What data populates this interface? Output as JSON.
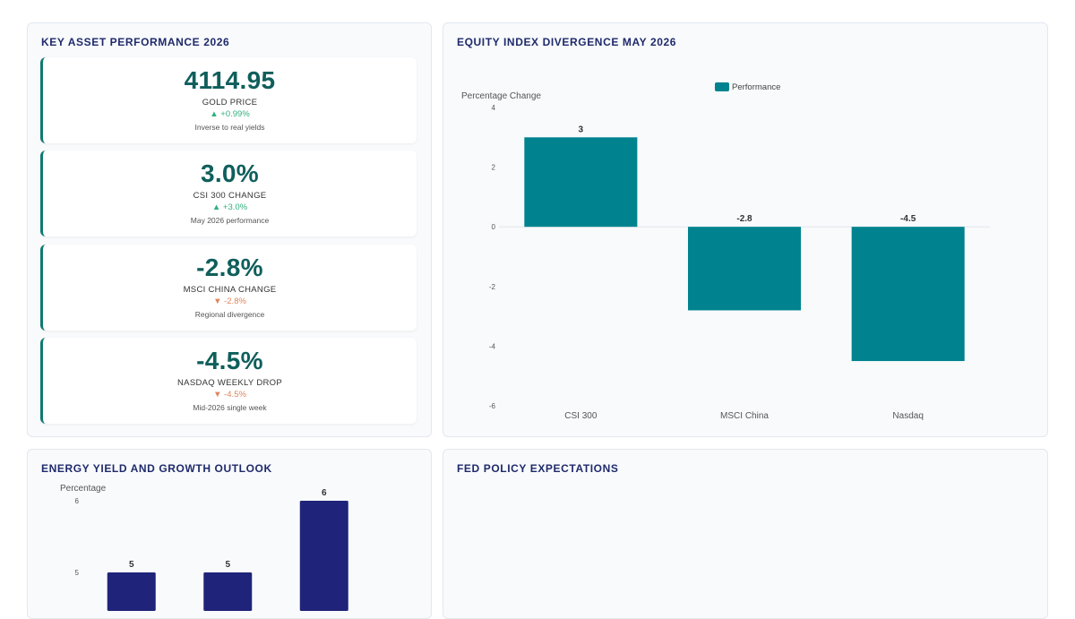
{
  "panels": {
    "kpi_title": "KEY ASSET PERFORMANCE 2026",
    "equity_title": "EQUITY INDEX DIVERGENCE MAY 2026",
    "energy_title": "ENERGY YIELD AND GROWTH OUTLOOK",
    "fed_title": "FED POLICY EXPECTATIONS"
  },
  "kpis": [
    {
      "value": "4114.95",
      "label": "GOLD PRICE",
      "delta": "▲ +0.99%",
      "direction": "up",
      "note": "Inverse to real yields"
    },
    {
      "value": "3.0%",
      "label": "CSI 300 CHANGE",
      "delta": "▲ +3.0%",
      "direction": "up",
      "note": "May 2026 performance"
    },
    {
      "value": "-2.8%",
      "label": "MSCI CHINA CHANGE",
      "delta": "▼ -2.8%",
      "direction": "down",
      "note": "Regional divergence"
    },
    {
      "value": "-4.5%",
      "label": "NASDAQ WEEKLY DROP",
      "delta": "▼ -4.5%",
      "direction": "down",
      "note": "Mid-2026 single week"
    }
  ],
  "chart_data": [
    {
      "type": "bar",
      "title": "EQUITY INDEX DIVERGENCE MAY 2026",
      "categories": [
        "CSI 300",
        "MSCI China",
        "Nasdaq"
      ],
      "series": [
        {
          "name": "Performance",
          "values": [
            3,
            -2.8,
            -4.5
          ],
          "color": "#00838f"
        }
      ],
      "ylabel": "Percentage Change",
      "xlabel": "",
      "ylim": [
        -6,
        4
      ],
      "yticks": [
        4,
        2,
        0,
        -2,
        -4,
        -6
      ],
      "legend": "top-center",
      "data_labels": [
        "3",
        "-2.8",
        "-4.5"
      ]
    },
    {
      "type": "bar",
      "title": "ENERGY YIELD AND GROWTH OUTLOOK",
      "series": [
        {
          "values": [
            5,
            5,
            6
          ],
          "color": "#1f247a"
        }
      ],
      "ylabel": "Percentage",
      "yticks": [
        6,
        5
      ],
      "data_labels": [
        "5",
        "5",
        "6"
      ]
    }
  ],
  "colors": {
    "accent": "#107a72",
    "up": "#2fb07d",
    "down": "#e0855e",
    "title": "#1f2a6b"
  }
}
